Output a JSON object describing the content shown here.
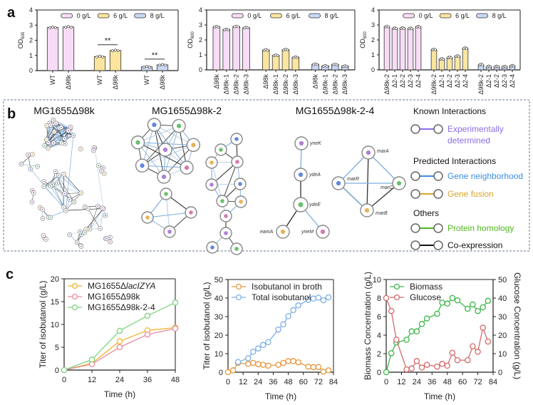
{
  "panels": {
    "a": "a",
    "b": "b",
    "c": "c"
  },
  "colors": {
    "g0": "#f8dcf6",
    "g6": "#fbe59f",
    "g8": "#c9d8f6"
  },
  "chart_data": [
    {
      "type": "bar",
      "panel": "a",
      "ylabel": "OD600",
      "ylabel_main": "OD",
      "ylabel_sub": "600",
      "ylim": [
        0,
        4
      ],
      "yticks": [
        0,
        1,
        2,
        3,
        4
      ],
      "legend": [
        "0 g/L",
        "6 g/L",
        "8 g/L"
      ],
      "legend_position": "top",
      "categories": [
        "WT",
        "Δ98k"
      ],
      "series": [
        {
          "name": "0 g/L",
          "values": [
            2.85,
            2.88
          ]
        },
        {
          "name": "6 g/L",
          "values": [
            0.93,
            1.33
          ]
        },
        {
          "name": "8 g/L",
          "values": [
            0.25,
            0.38
          ]
        }
      ],
      "significance": [
        null,
        "**",
        "**"
      ]
    },
    {
      "type": "bar",
      "panel": "a",
      "ylabel": "OD600",
      "ylabel_main": "OD",
      "ylabel_sub": "600",
      "ylim": [
        0,
        4
      ],
      "yticks": [
        0,
        1,
        2,
        3,
        4
      ],
      "legend": [
        "0 g/L",
        "6 g/L",
        "8 g/L"
      ],
      "legend_position": "top",
      "categories": [
        "Δ98k",
        "Δ98k-1",
        "Δ98k-2",
        "Δ98k-3"
      ],
      "series": [
        {
          "name": "0 g/L",
          "values": [
            2.88,
            2.7,
            2.9,
            2.82
          ]
        },
        {
          "name": "6 g/L",
          "values": [
            1.33,
            0.97,
            1.35,
            0.85
          ]
        },
        {
          "name": "8 g/L",
          "values": [
            0.38,
            0.27,
            0.37,
            0.25
          ]
        }
      ]
    },
    {
      "type": "bar",
      "panel": "a",
      "ylabel": "OD600",
      "ylabel_main": "OD",
      "ylabel_sub": "600",
      "ylim": [
        0,
        4
      ],
      "yticks": [
        0,
        1,
        2,
        3,
        4
      ],
      "legend": [
        "0 g/L",
        "6 g/L",
        "8 g/L"
      ],
      "legend_position": "top",
      "categories": [
        "Δ98k-2",
        "Δ2-1",
        "Δ2-2",
        "Δ2-3",
        "Δ2-4"
      ],
      "series": [
        {
          "name": "0 g/L",
          "values": [
            2.9,
            2.78,
            2.8,
            2.77,
            2.88
          ]
        },
        {
          "name": "6 g/L",
          "values": [
            1.37,
            0.73,
            0.83,
            0.93,
            1.45
          ]
        },
        {
          "name": "8 g/L",
          "values": [
            0.35,
            0.23,
            0.23,
            0.22,
            0.28
          ]
        }
      ]
    },
    {
      "type": "line",
      "panel": "c",
      "xlabel": "Time (h)",
      "ylabel": "Titer of isobutanol (g/L)",
      "xlim": [
        0,
        48
      ],
      "xticks": [
        0,
        12,
        24,
        36,
        48
      ],
      "ylim": [
        0,
        20
      ],
      "yticks": [
        0,
        5,
        10,
        15,
        20
      ],
      "legend_position": "top-left",
      "series": [
        {
          "name": "MG1655ΔlacIZYA",
          "name_prefix": "MG1655Δ",
          "name_italic": "lacIZYA",
          "color": "#f2b52b",
          "x": [
            0,
            12,
            24,
            36,
            48
          ],
          "y": [
            0,
            1.5,
            6.3,
            8.7,
            9.3
          ]
        },
        {
          "name": "MG1655Δ98k",
          "color": "#e98aa0",
          "x": [
            0,
            12,
            24,
            36,
            48
          ],
          "y": [
            0,
            1.3,
            5.0,
            7.8,
            9.1
          ]
        },
        {
          "name": "MG1655Δ98k-2-4",
          "color": "#7fd37f",
          "x": [
            0,
            12,
            24,
            36,
            48
          ],
          "y": [
            0,
            2.3,
            8.6,
            11.9,
            14.8
          ]
        }
      ]
    },
    {
      "type": "line",
      "panel": "c",
      "xlabel": "Time (h)",
      "ylabel": "Titer of isobutanol (g/L)",
      "xlim": [
        0,
        84
      ],
      "xticks": [
        0,
        12,
        24,
        36,
        48,
        60,
        72,
        84
      ],
      "ylim": [
        0,
        50
      ],
      "yticks": [
        0,
        10,
        20,
        30,
        40,
        50
      ],
      "legend_position": "top-left",
      "series": [
        {
          "name": "Isobutanol in broth",
          "color": "#e8963a",
          "x": [
            0,
            4,
            8,
            16,
            20,
            24,
            28,
            32,
            40,
            44,
            48,
            52,
            56,
            64,
            68,
            72,
            76,
            80
          ],
          "y": [
            0,
            1,
            5,
            4.5,
            5,
            4.3,
            4,
            3.5,
            4,
            5,
            6,
            6,
            5.3,
            3,
            2.7,
            2.8,
            0.3,
            1
          ]
        },
        {
          "name": "Total isobutanol",
          "color": "#7eb0e6",
          "x": [
            8,
            16,
            20,
            24,
            28,
            32,
            40,
            44,
            48,
            52,
            56,
            64,
            68,
            72,
            76,
            80
          ],
          "y": [
            5.5,
            7.5,
            11,
            12.8,
            14.7,
            16.2,
            23,
            25.8,
            30.2,
            33.5,
            36,
            39,
            39.7,
            40.2,
            38.8,
            40.4
          ]
        }
      ]
    },
    {
      "type": "line",
      "panel": "c",
      "xlabel": "Time (h)",
      "ylabel": "Biomass Concentration (g/L)",
      "ylabel_right": "Glucose Concentration (g/L)",
      "xlim": [
        0,
        84
      ],
      "xticks": [
        0,
        12,
        24,
        36,
        48,
        60,
        72,
        84
      ],
      "ylim": [
        0,
        10
      ],
      "yticks": [
        0,
        2,
        4,
        6,
        8,
        10
      ],
      "ylim_right": [
        0,
        50
      ],
      "yticks_right": [
        0,
        10,
        20,
        30,
        40,
        50
      ],
      "legend_position": "top-left",
      "series": [
        {
          "name": "Biomass",
          "color": "#3db64a",
          "axis": "left",
          "x": [
            0,
            4,
            8,
            16,
            20,
            24,
            28,
            32,
            40,
            44,
            48,
            52,
            56,
            64,
            68,
            72,
            76,
            80
          ],
          "y": [
            0,
            2.05,
            3.2,
            3.5,
            4.4,
            4.4,
            5.2,
            5.8,
            6.3,
            7.5,
            7.4,
            8,
            7.75,
            6.85,
            7.3,
            6.6,
            7,
            7.7
          ]
        },
        {
          "name": "Glucose",
          "color": "#d46a6a",
          "axis": "right",
          "x": [
            0,
            4,
            8,
            16,
            20,
            24,
            28,
            32,
            40,
            44,
            48,
            52,
            56,
            64,
            68,
            72,
            76,
            80
          ],
          "y": [
            40,
            33,
            17.5,
            1.5,
            2,
            6,
            2.5,
            4,
            3,
            4.5,
            3.5,
            10.5,
            6.5,
            6.5,
            14,
            11,
            24,
            16.5
          ]
        }
      ]
    }
  ],
  "networks": {
    "titles": [
      "MG1655Δ98k",
      "MG1655Δ98k-2",
      "MG1655Δ98k-2-4"
    ],
    "genes": [
      "yneK",
      "ydeA",
      "ydeE",
      "eamA",
      "yneM",
      "marA",
      "marR",
      "marC",
      "marB"
    ]
  },
  "legend_b": {
    "known_title": "Known Interactions",
    "predicted_title": "Predicted Interactions",
    "others_title": "Others",
    "items": [
      {
        "label": "Experimentally",
        "label2": "determined",
        "color": "#8a6ee6"
      },
      {
        "label": "Gene neighborhood",
        "color": "#3d8fe0"
      },
      {
        "label": "Gene fusion",
        "color": "#d8a52a"
      },
      {
        "label": "Protein homology",
        "color": "#52b81e"
      },
      {
        "label": "Co-expression",
        "color": "#111111"
      }
    ]
  }
}
